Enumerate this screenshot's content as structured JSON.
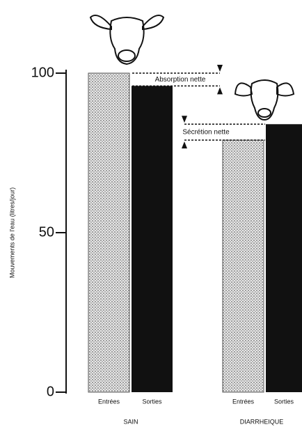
{
  "chart_data": {
    "type": "bar",
    "y_label": "Mouvements de l'eau (litres/jour)",
    "groups": [
      "SAIN",
      "DIARRHEIQUE"
    ],
    "series": [
      {
        "name": "Entrées",
        "color": "#b5b5b5",
        "values": [
          100,
          79
        ]
      },
      {
        "name": "Sorties",
        "color": "#111111",
        "values": [
          96,
          84
        ]
      }
    ],
    "ylim": [
      0,
      100
    ],
    "yticks": [
      0,
      50,
      100
    ],
    "annotations": [
      "Absorption nette",
      "Sécrétion nette"
    ]
  }
}
